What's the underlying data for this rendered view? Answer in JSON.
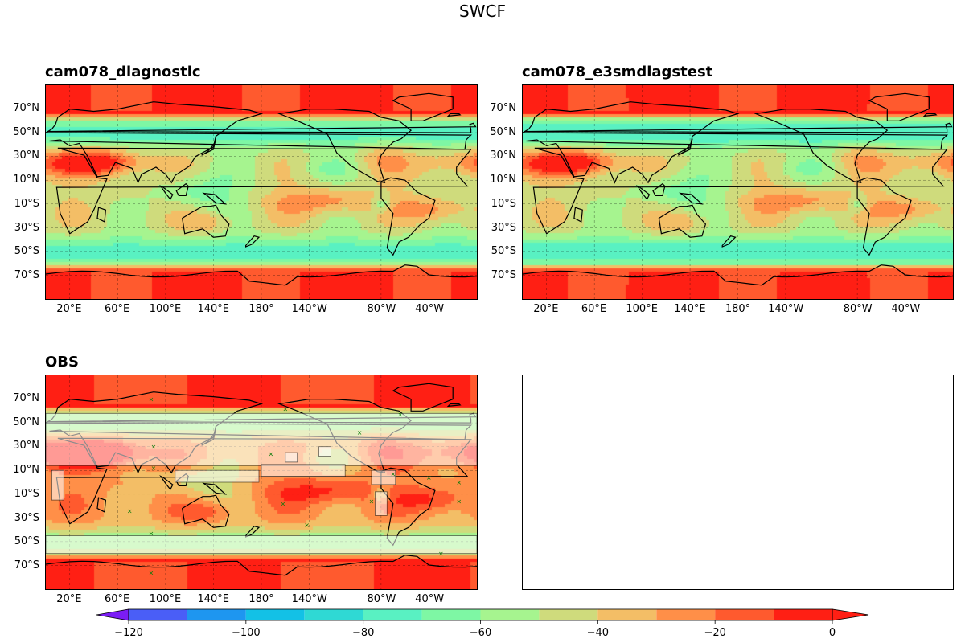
{
  "figure": {
    "title": "SWCF"
  },
  "panels": [
    {
      "id": "p1",
      "title": "cam078_diagnostic",
      "field": "model_a"
    },
    {
      "id": "p2",
      "title": "cam078_e3smdiagstest",
      "field": "model_b"
    },
    {
      "id": "p3",
      "title": "OBS",
      "field": "obs"
    }
  ],
  "axes": {
    "lat_ticks": [
      "70°N",
      "50°N",
      "30°N",
      "10°N",
      "10°S",
      "30°S",
      "50°S",
      "70°S"
    ],
    "lat_values": [
      70,
      50,
      30,
      10,
      -10,
      -30,
      -50,
      -70
    ],
    "lon_ticks": [
      "20°E",
      "60°E",
      "100°E",
      "140°E",
      "180°",
      "140°W",
      "80°W",
      "40°W"
    ],
    "lon_values": [
      20,
      60,
      100,
      140,
      180,
      220,
      280,
      320
    ],
    "lon_range": [
      0,
      360
    ],
    "lat_range": [
      -90,
      90
    ]
  },
  "colorbar": {
    "tick_labels": [
      "−120",
      "−100",
      "−80",
      "−60",
      "−40",
      "−20",
      "0"
    ],
    "tick_values": [
      -120,
      -100,
      -80,
      -60,
      -40,
      -20,
      0
    ],
    "range": [
      -130,
      0
    ],
    "levels": [
      -130,
      -120,
      -110,
      -100,
      -90,
      -80,
      -70,
      -60,
      -50,
      -40,
      -30,
      -20,
      -10,
      0
    ],
    "colors": [
      "#7b1cf5",
      "#4a5ef7",
      "#1e96f0",
      "#13c1e6",
      "#2fd9d4",
      "#59f1c2",
      "#7ef7a4",
      "#a6f48f",
      "#cfdb7c",
      "#f3be66",
      "#ff8f48",
      "#ff5a2e",
      "#ff1f14"
    ],
    "extend": "min"
  },
  "chart_data": {
    "type": "heatmap",
    "variable": "SWCF",
    "series": [
      {
        "name": "cam078_diagnostic",
        "value_range": [
          -130,
          0
        ]
      },
      {
        "name": "cam078_e3smdiagstest",
        "value_range": [
          -130,
          0
        ]
      },
      {
        "name": "OBS",
        "value_range": [
          -120,
          0
        ]
      }
    ],
    "lat_ticks": [
      70,
      50,
      30,
      10,
      -10,
      -30,
      -50,
      -70
    ],
    "lon_ticks": [
      20,
      60,
      100,
      140,
      180,
      220,
      280,
      320
    ],
    "levels": [
      -130,
      -120,
      -110,
      -100,
      -90,
      -80,
      -70,
      -60,
      -50,
      -40,
      -30,
      -20,
      -10,
      0
    ],
    "grid": true,
    "colorbar_placement": "bottom"
  }
}
